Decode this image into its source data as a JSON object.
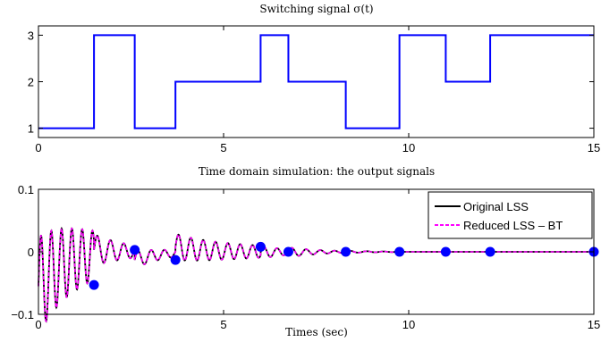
{
  "chart_data": [
    {
      "type": "line",
      "title": "Switching signal σ(t)",
      "xlabel": "",
      "ylabel": "",
      "xlim": [
        0,
        15
      ],
      "ylim": [
        0.8,
        3.2
      ],
      "xticks": [
        0,
        5,
        10,
        15
      ],
      "yticks": [
        1,
        2,
        3
      ],
      "grid": false,
      "series": [
        {
          "color": "#0000ff",
          "style": "step",
          "x": [
            0,
            1.5,
            1.5,
            2.6,
            2.6,
            3.7,
            3.7,
            6.0,
            6.0,
            6.75,
            6.75,
            8.3,
            8.3,
            9.75,
            9.75,
            11.0,
            11.0,
            12.2,
            12.2,
            15.0
          ],
          "y": [
            1,
            1,
            3,
            3,
            1,
            1,
            2,
            2,
            3,
            3,
            2,
            2,
            1,
            1,
            3,
            3,
            2,
            2,
            3,
            3
          ]
        }
      ]
    },
    {
      "type": "line",
      "title": "Time domain simulation: the output signals",
      "xlabel": "Times (sec)",
      "ylabel": "",
      "xlim": [
        0,
        15
      ],
      "ylim": [
        -0.1,
        0.1
      ],
      "xticks": [
        0,
        5,
        10,
        15
      ],
      "yticks": [
        -0.1,
        0,
        0.1
      ],
      "grid": false,
      "legend_position": "top-right",
      "segments": [
        {
          "t0": 0.0,
          "t1": 1.5,
          "y0": -0.055,
          "amp": 0.078,
          "tau": 2.2,
          "freq": 3.6
        },
        {
          "t0": 1.5,
          "t1": 2.6,
          "y0": 0.003,
          "amp": 0.025,
          "tau": 1.2,
          "freq": 2.8
        },
        {
          "t0": 2.6,
          "t1": 3.7,
          "y0": -0.013,
          "amp": 0.014,
          "tau": 1.2,
          "freq": 2.8
        },
        {
          "t0": 3.7,
          "t1": 6.0,
          "y0": 0.008,
          "amp": 0.021,
          "tau": 3.0,
          "freq": 3.0
        },
        {
          "t0": 6.0,
          "t1": 6.75,
          "y0": -0.001,
          "amp": 0.01,
          "tau": 1.0,
          "freq": 2.8
        },
        {
          "t0": 6.75,
          "t1": 8.3,
          "y0": -0.001,
          "amp": 0.008,
          "tau": 0.9,
          "freq": 2.6
        },
        {
          "t0": 8.3,
          "t1": 9.75,
          "y0": 0.0,
          "amp": 0.002,
          "tau": 0.8,
          "freq": 2.2
        },
        {
          "t0": 9.75,
          "t1": 15.0,
          "y0": 0.0,
          "amp": 0.0,
          "tau": 1.0,
          "freq": 2.0
        }
      ],
      "series": [
        {
          "name": "Original LSS",
          "color": "#000000",
          "style": "solid"
        },
        {
          "name": "Reduced LSS – BT",
          "color": "#ff00ff",
          "style": "dashed"
        }
      ],
      "markers": {
        "color": "#0000ff",
        "x": [
          1.5,
          2.6,
          3.7,
          6.0,
          6.75,
          8.3,
          9.75,
          11.0,
          12.2,
          15.0
        ],
        "y": [
          -0.053,
          0.003,
          -0.013,
          0.008,
          0.0,
          0.0,
          0.0,
          0.0,
          0.0,
          0.0
        ]
      }
    }
  ]
}
